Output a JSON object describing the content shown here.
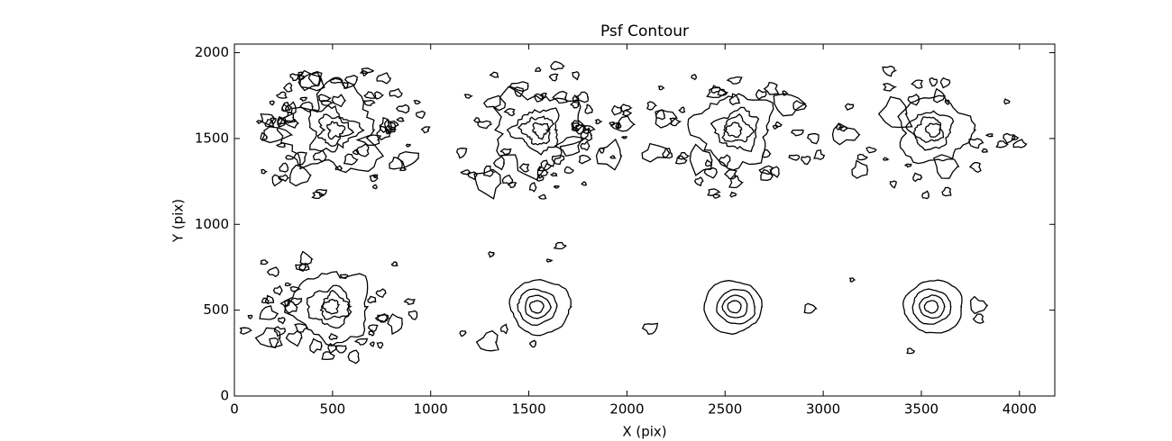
{
  "chart_data": {
    "type": "contour",
    "title": "Psf Contour",
    "x_label": "X (pix)",
    "y_label": "Y (pix)",
    "x": [
      500,
      1550,
      2550,
      3550,
      500,
      1550,
      2550,
      3550
    ],
    "y": [
      1550,
      1550,
      1550,
      1550,
      520,
      520,
      520,
      520
    ],
    "xlim": [
      0,
      4180
    ],
    "ylim": [
      0,
      2050
    ],
    "xticks": [
      0,
      500,
      1000,
      1500,
      2000,
      2500,
      3000,
      3500,
      4000
    ],
    "yticks": [
      0,
      500,
      1000,
      1500,
      2000
    ],
    "color": "#000000"
  }
}
